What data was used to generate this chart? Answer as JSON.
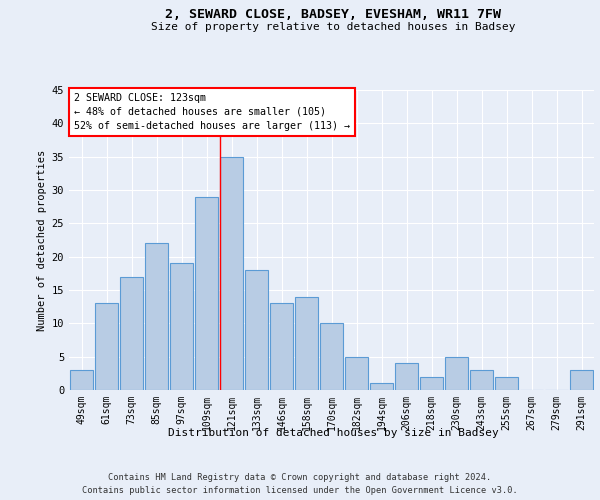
{
  "title1": "2, SEWARD CLOSE, BADSEY, EVESHAM, WR11 7FW",
  "title2": "Size of property relative to detached houses in Badsey",
  "xlabel": "Distribution of detached houses by size in Badsey",
  "ylabel": "Number of detached properties",
  "categories": [
    "49sqm",
    "61sqm",
    "73sqm",
    "85sqm",
    "97sqm",
    "109sqm",
    "121sqm",
    "133sqm",
    "146sqm",
    "158sqm",
    "170sqm",
    "182sqm",
    "194sqm",
    "206sqm",
    "218sqm",
    "230sqm",
    "243sqm",
    "255sqm",
    "267sqm",
    "279sqm",
    "291sqm"
  ],
  "values": [
    3,
    13,
    17,
    22,
    19,
    29,
    35,
    18,
    13,
    14,
    10,
    5,
    1,
    4,
    2,
    5,
    3,
    2,
    0,
    0,
    3
  ],
  "bar_color": "#b8cce4",
  "bar_edge_color": "#5b9bd5",
  "property_line_x": 6,
  "annotation_title": "2 SEWARD CLOSE: 123sqm",
  "annotation_line1": "← 48% of detached houses are smaller (105)",
  "annotation_line2": "52% of semi-detached houses are larger (113) →",
  "ylim": [
    0,
    45
  ],
  "yticks": [
    0,
    5,
    10,
    15,
    20,
    25,
    30,
    35,
    40,
    45
  ],
  "footnote1": "Contains HM Land Registry data © Crown copyright and database right 2024.",
  "footnote2": "Contains public sector information licensed under the Open Government Licence v3.0.",
  "bg_color": "#e8eef8",
  "plot_bg_color": "#e8eef8"
}
